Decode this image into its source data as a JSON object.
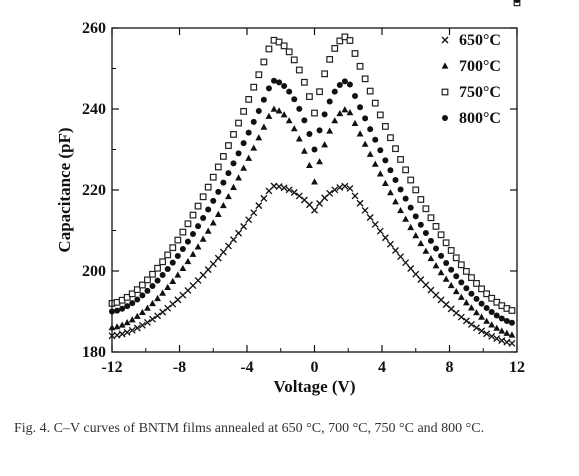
{
  "chart_data": {
    "type": "scatter",
    "xlabel": "Voltage (V)",
    "ylabel": "Capacitance (pF)",
    "xlim": [
      -12,
      12
    ],
    "ylim": [
      180,
      260
    ],
    "xticks": [
      "-12",
      "-8",
      "-4",
      "0",
      "4",
      "8",
      "12"
    ],
    "yticks": [
      "180",
      "200",
      "220",
      "240",
      "260"
    ],
    "grid": false,
    "legend_position": "top-right",
    "series": [
      {
        "name": "650°C",
        "marker": "x",
        "peak_left": [
          -2.5,
          221
        ],
        "peak_right": [
          2.0,
          221
        ],
        "end_left": [
          -12,
          184
        ],
        "end_right": [
          12,
          182
        ],
        "cross": [
          0,
          215
        ],
        "x": [
          -12,
          -8,
          -4,
          -2.5,
          0,
          2,
          4,
          8,
          12
        ],
        "y": [
          184,
          193,
          213,
          221,
          215,
          221,
          212,
          194,
          182
        ]
      },
      {
        "name": "700°C",
        "marker": "triangle",
        "peak_left": [
          -2.5,
          240
        ],
        "peak_right": [
          2.0,
          240
        ],
        "end_left": [
          -12,
          186
        ],
        "end_right": [
          12,
          184
        ],
        "cross": [
          0,
          222
        ],
        "x": [
          -12,
          -8,
          -4,
          -2.5,
          0,
          2,
          4,
          8,
          12
        ],
        "y": [
          186,
          199,
          228,
          240,
          222,
          240,
          227,
          200,
          184
        ]
      },
      {
        "name": "750°C",
        "marker": "square",
        "peak_left": [
          -2.5,
          257
        ],
        "peak_right": [
          2.0,
          258
        ],
        "end_left": [
          -12,
          192
        ],
        "end_right": [
          12,
          190
        ],
        "cross": [
          0,
          239
        ],
        "x": [
          -12,
          -8,
          -4,
          -2.5,
          0,
          2,
          4,
          8,
          12
        ],
        "y": [
          192,
          212,
          242,
          257,
          239,
          258,
          243,
          213,
          190
        ]
      },
      {
        "name": "800°C",
        "marker": "circle",
        "peak_left": [
          -2.5,
          247
        ],
        "peak_right": [
          2.0,
          247
        ],
        "end_left": [
          -12,
          190
        ],
        "end_right": [
          12,
          187
        ],
        "cross": [
          0,
          230
        ],
        "x": [
          -12,
          -8,
          -4,
          -2.5,
          0,
          2,
          4,
          8,
          12
        ],
        "y": [
          190,
          206,
          235,
          247,
          230,
          247,
          234,
          206,
          187
        ]
      }
    ]
  },
  "caption": {
    "text": "Fig. 4. C–V curves of BNTM films annealed at 650 °C, 700 °C, 750 °C and 800 °C."
  }
}
